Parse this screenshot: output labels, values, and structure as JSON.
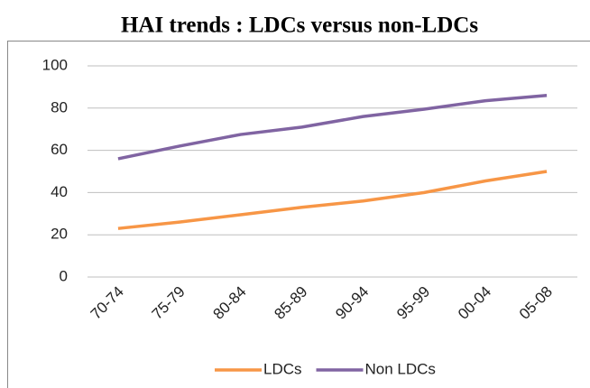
{
  "chart_data": {
    "type": "line",
    "title": "HAI trends : LDCs versus non-LDCs",
    "categories": [
      "70-74",
      "75-79",
      "80-84",
      "85-89",
      "90-94",
      "95-99",
      "00-04",
      "05-08"
    ],
    "series": [
      {
        "name": "LDCs",
        "color": "#f79646",
        "values": [
          23,
          26,
          29.5,
          33,
          36,
          40,
          45.5,
          50
        ]
      },
      {
        "name": "Non LDCs",
        "color": "#8064a2",
        "values": [
          56,
          62,
          67.5,
          71,
          76,
          79.5,
          83.5,
          86
        ]
      }
    ],
    "ylim": [
      0,
      100
    ],
    "yticks": [
      0,
      20,
      40,
      60,
      80,
      100
    ],
    "grid": true,
    "legend": "bottom"
  }
}
